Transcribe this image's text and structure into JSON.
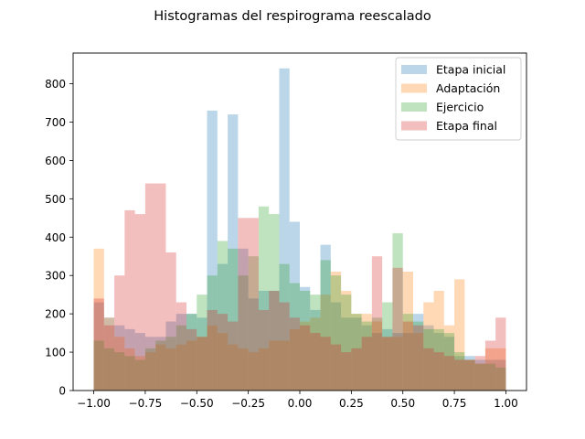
{
  "chart_data": {
    "type": "bar",
    "title": "Histogramas del respirograma reescalado",
    "xlabel": "",
    "ylabel": "",
    "xlim": [
      -1.1,
      1.1
    ],
    "ylim": [
      0,
      880
    ],
    "xticks": [
      -1.0,
      -0.75,
      -0.5,
      -0.25,
      0.0,
      0.25,
      0.5,
      0.75,
      1.0
    ],
    "xtick_labels": [
      "−1.00",
      "−0.75",
      "−0.50",
      "−0.25",
      "0.00",
      "0.25",
      "0.50",
      "0.75",
      "1.00"
    ],
    "yticks": [
      0,
      100,
      200,
      300,
      400,
      500,
      600,
      700,
      800
    ],
    "ytick_labels": [
      "0",
      "100",
      "200",
      "300",
      "400",
      "500",
      "600",
      "700",
      "800"
    ],
    "grid": false,
    "legend_placement": "top-right",
    "bin_edges_range": [
      -1.0,
      1.0
    ],
    "bins": 40,
    "alpha": 0.3,
    "series": [
      {
        "name": "Etapa inicial",
        "color": "#1f77b4",
        "values": [
          230,
          190,
          170,
          160,
          150,
          140,
          140,
          180,
          200,
          200,
          190,
          730,
          330,
          720,
          370,
          240,
          260,
          260,
          840,
          440,
          270,
          210,
          380,
          230,
          190,
          190,
          170,
          150,
          160,
          150,
          150,
          200,
          170,
          150,
          140,
          90,
          90,
          80,
          80,
          80
        ]
      },
      {
        "name": "Adaptación",
        "color": "#ff7f0e",
        "values": [
          370,
          190,
          140,
          110,
          90,
          100,
          120,
          110,
          120,
          130,
          140,
          170,
          150,
          120,
          110,
          100,
          110,
          130,
          130,
          160,
          180,
          190,
          250,
          310,
          260,
          200,
          200,
          180,
          140,
          140,
          310,
          150,
          230,
          260,
          170,
          290,
          80,
          70,
          110,
          110
        ]
      },
      {
        "name": "Ejercicio",
        "color": "#2ca02c",
        "values": [
          130,
          110,
          100,
          90,
          80,
          110,
          130,
          140,
          170,
          200,
          250,
          300,
          390,
          370,
          300,
          350,
          480,
          460,
          330,
          280,
          260,
          250,
          340,
          300,
          250,
          200,
          180,
          190,
          230,
          410,
          200,
          180,
          160,
          160,
          150,
          100,
          80,
          70,
          70,
          60
        ]
      },
      {
        "name": "Etapa final",
        "color": "#d62728",
        "values": [
          240,
          170,
          300,
          470,
          460,
          540,
          540,
          360,
          230,
          160,
          140,
          210,
          200,
          180,
          450,
          450,
          210,
          260,
          230,
          190,
          170,
          150,
          140,
          120,
          100,
          110,
          140,
          350,
          140,
          320,
          180,
          170,
          110,
          100,
          90,
          80,
          80,
          90,
          130,
          190
        ]
      }
    ]
  }
}
